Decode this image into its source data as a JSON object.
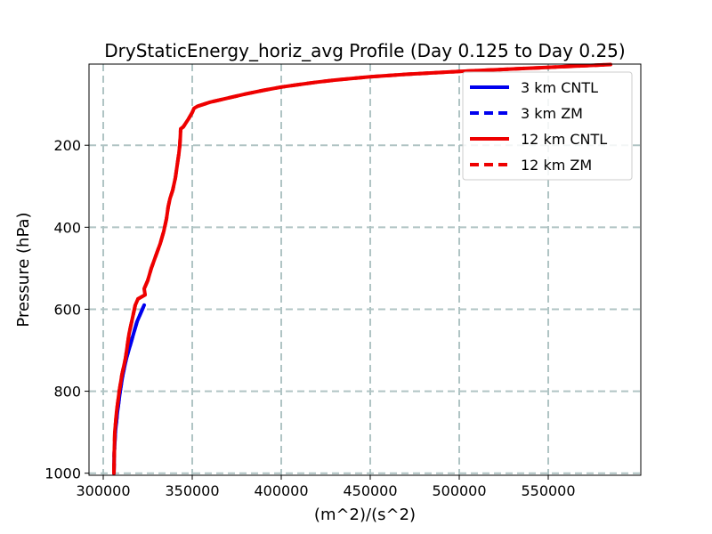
{
  "chart_data": {
    "type": "line",
    "title": "DryStaticEnergy_horiz_avg Profile (Day 0.125 to Day 0.25)",
    "xlabel": "(m^2)/(s^2)",
    "ylabel": "Pressure (hPa)",
    "xlim": [
      292000,
      602000
    ],
    "ylim": [
      1005,
      2
    ],
    "y_inverted": true,
    "grid": true,
    "legend_position": "top-right",
    "x_ticks": [
      {
        "value": 300000,
        "label": "300000"
      },
      {
        "value": 350000,
        "label": "350000"
      },
      {
        "value": 400000,
        "label": "400000"
      },
      {
        "value": 450000,
        "label": "450000"
      },
      {
        "value": 500000,
        "label": "500000"
      },
      {
        "value": 550000,
        "label": "550000"
      }
    ],
    "y_ticks": [
      {
        "value": 200,
        "label": "200"
      },
      {
        "value": 400,
        "label": "400"
      },
      {
        "value": 600,
        "label": "600"
      },
      {
        "value": 800,
        "label": "800"
      },
      {
        "value": 1000,
        "label": "1000"
      }
    ],
    "series": [
      {
        "name": "3 km CNTL",
        "color": "#0000ee",
        "dash": "solid",
        "points": [
          [
            306000,
            1000
          ],
          [
            306200,
            950
          ],
          [
            306800,
            900
          ],
          [
            308000,
            850
          ],
          [
            309500,
            800
          ],
          [
            311000,
            760
          ],
          [
            313000,
            720
          ],
          [
            315000,
            690
          ],
          [
            317000,
            660
          ],
          [
            319000,
            630
          ],
          [
            321000,
            610
          ],
          [
            323000,
            590
          ]
        ]
      },
      {
        "name": "3 km ZM",
        "color": "#0000ee",
        "dash": "dashed",
        "points": [
          [
            306000,
            1000
          ],
          [
            306200,
            950
          ],
          [
            306800,
            900
          ],
          [
            308000,
            850
          ],
          [
            309500,
            800
          ],
          [
            311000,
            760
          ],
          [
            313000,
            720
          ],
          [
            315000,
            690
          ],
          [
            317000,
            660
          ],
          [
            319000,
            630
          ],
          [
            321000,
            610
          ],
          [
            323000,
            590
          ]
        ]
      },
      {
        "name": "12 km CNTL",
        "color": "#ee0000",
        "dash": "solid",
        "points": [
          [
            306000,
            1000
          ],
          [
            306200,
            950
          ],
          [
            306500,
            900
          ],
          [
            307500,
            850
          ],
          [
            309000,
            800
          ],
          [
            310500,
            760
          ],
          [
            312500,
            720
          ],
          [
            313500,
            690
          ],
          [
            314500,
            660
          ],
          [
            316000,
            630
          ],
          [
            317000,
            610
          ],
          [
            318000,
            590
          ],
          [
            319500,
            575
          ],
          [
            323500,
            565
          ],
          [
            323000,
            550
          ],
          [
            325000,
            530
          ],
          [
            327000,
            500
          ],
          [
            329500,
            470
          ],
          [
            332000,
            440
          ],
          [
            334000,
            410
          ],
          [
            335500,
            380
          ],
          [
            336500,
            350
          ],
          [
            337500,
            330
          ],
          [
            339000,
            310
          ],
          [
            340500,
            280
          ],
          [
            341500,
            250
          ],
          [
            342500,
            220
          ],
          [
            343000,
            200
          ],
          [
            343300,
            180
          ],
          [
            343500,
            160
          ],
          [
            345000,
            155
          ],
          [
            346500,
            145
          ],
          [
            348000,
            135
          ],
          [
            350000,
            120
          ],
          [
            351000,
            110
          ],
          [
            353000,
            105
          ],
          [
            360000,
            95
          ],
          [
            370000,
            85
          ],
          [
            380000,
            75
          ],
          [
            390000,
            66
          ],
          [
            400000,
            58
          ],
          [
            410000,
            52
          ],
          [
            420000,
            46
          ],
          [
            430000,
            41
          ],
          [
            450000,
            33
          ],
          [
            470000,
            27
          ],
          [
            500000,
            20
          ],
          [
            530000,
            14
          ],
          [
            560000,
            8
          ],
          [
            585000,
            3
          ]
        ]
      },
      {
        "name": "12 km ZM",
        "color": "#ee0000",
        "dash": "dashed",
        "points": [
          [
            306000,
            1000
          ],
          [
            306200,
            950
          ],
          [
            306500,
            900
          ],
          [
            307500,
            850
          ],
          [
            309000,
            800
          ],
          [
            310500,
            760
          ],
          [
            312500,
            720
          ],
          [
            313500,
            690
          ],
          [
            314500,
            660
          ],
          [
            316000,
            630
          ],
          [
            317000,
            610
          ],
          [
            318000,
            590
          ],
          [
            319500,
            575
          ],
          [
            323500,
            565
          ],
          [
            323000,
            550
          ],
          [
            325000,
            530
          ],
          [
            327000,
            500
          ],
          [
            329500,
            470
          ],
          [
            332000,
            440
          ],
          [
            334000,
            410
          ],
          [
            335500,
            380
          ],
          [
            336500,
            350
          ],
          [
            337500,
            330
          ],
          [
            339000,
            310
          ],
          [
            340500,
            280
          ],
          [
            341500,
            250
          ],
          [
            342500,
            220
          ],
          [
            343000,
            200
          ],
          [
            343300,
            180
          ],
          [
            343500,
            160
          ],
          [
            345000,
            155
          ],
          [
            346500,
            145
          ],
          [
            348000,
            135
          ],
          [
            350000,
            120
          ],
          [
            351000,
            110
          ],
          [
            353000,
            105
          ],
          [
            360000,
            95
          ],
          [
            370000,
            85
          ],
          [
            380000,
            75
          ],
          [
            390000,
            66
          ],
          [
            400000,
            58
          ],
          [
            410000,
            52
          ],
          [
            420000,
            46
          ],
          [
            430000,
            41
          ],
          [
            450000,
            33
          ],
          [
            470000,
            27
          ],
          [
            500000,
            20
          ],
          [
            530000,
            14
          ],
          [
            560000,
            8
          ],
          [
            585000,
            3
          ]
        ]
      }
    ]
  }
}
